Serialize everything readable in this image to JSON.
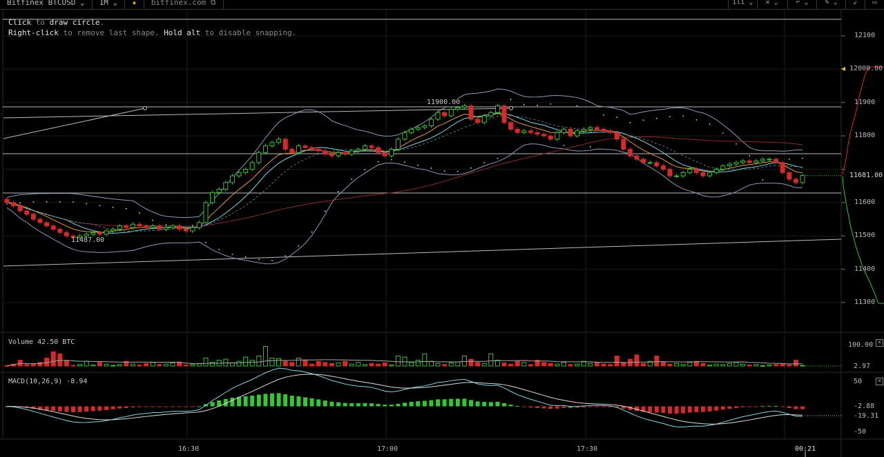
{
  "topbar": {
    "symbol": "Bitfinex BTCUSD",
    "timeframe": "1M",
    "star": "★",
    "site": "bitfinex.com",
    "chevron": "⌄"
  },
  "hint": {
    "l1a": "Click",
    "l1b": " to ",
    "l1c": "draw circle",
    "l1d": ".",
    "l2a": "Right-click",
    "l2b": " to remove last shape. ",
    "l2c": "Hold alt",
    "l2d": " to disable snapping."
  },
  "annotations": {
    "high": "11900.00",
    "low": "11487.00"
  },
  "price_axis": {
    "ticks": [
      "12100",
      "12000.00",
      "11900",
      "11800",
      "11681.00",
      "11600",
      "11500",
      "11400",
      "11300"
    ]
  },
  "volume": {
    "title": "Volume 42.50 BTC",
    "ticks": [
      "100.00",
      "2.97"
    ]
  },
  "macd": {
    "title": "MACD(10,26,9) -8.94",
    "ticks": [
      "50",
      "-2.88",
      "-19.31",
      "-50"
    ]
  },
  "time_axis": {
    "ticks": [
      "16:30",
      "17:00",
      "17:30",
      "00:21"
    ]
  },
  "colors": {
    "up": "#35c535",
    "down": "#d42a2a",
    "bb": "#8a9ab8",
    "ema": "#e89b3c",
    "ma": "#7fd8e0",
    "ma2": "#8b2b2b"
  },
  "chart_data": {
    "type": "candlestick",
    "symbol": "BTCUSD",
    "interval": "1m",
    "ylim": [
      11270,
      12130
    ],
    "open_first": 11610,
    "closes": [
      11600,
      11590,
      11575,
      11565,
      11550,
      11540,
      11530,
      11520,
      11510,
      11500,
      11495,
      11500,
      11505,
      11510,
      11505,
      11515,
      11520,
      11530,
      11525,
      11535,
      11530,
      11525,
      11530,
      11520,
      11525,
      11530,
      11520,
      11515,
      11525,
      11540,
      11600,
      11630,
      11640,
      11660,
      11680,
      11690,
      11700,
      11720,
      11750,
      11770,
      11780,
      11790,
      11760,
      11750,
      11770,
      11765,
      11760,
      11755,
      11745,
      11740,
      11750,
      11745,
      11755,
      11760,
      11770,
      11765,
      11750,
      11740,
      11760,
      11790,
      11810,
      11820,
      11825,
      11830,
      11850,
      11870,
      11860,
      11880,
      11885,
      11890,
      11850,
      11840,
      11860,
      11870,
      11890,
      11840,
      11820,
      11810,
      11815,
      11810,
      11805,
      11800,
      11790,
      11810,
      11820,
      11800,
      11815,
      11820,
      11825,
      11820,
      11815,
      11810,
      11790,
      11760,
      11740,
      11730,
      11720,
      11720,
      11710,
      11700,
      11680,
      11680,
      11690,
      11700,
      11690,
      11680,
      11690,
      11700,
      11710,
      11715,
      11720,
      11725,
      11720,
      11725,
      11730,
      11730,
      11720,
      11690,
      11670,
      11660,
      11681
    ],
    "volumes": [
      5,
      12,
      30,
      10,
      12,
      20,
      40,
      70,
      60,
      30,
      6,
      10,
      25,
      8,
      20,
      12,
      6,
      10,
      25,
      12,
      8,
      15,
      20,
      10,
      12,
      18,
      22,
      8,
      10,
      15,
      40,
      20,
      30,
      35,
      18,
      25,
      45,
      30,
      50,
      95,
      40,
      38,
      25,
      20,
      40,
      30,
      12,
      25,
      20,
      15,
      18,
      25,
      12,
      20,
      10,
      15,
      12,
      18,
      8,
      50,
      45,
      20,
      30,
      60,
      25,
      15,
      10,
      18,
      22,
      50,
      35,
      20,
      15,
      60,
      30,
      18,
      12,
      25,
      20,
      10,
      30,
      20,
      15,
      12,
      20,
      10,
      12,
      25,
      15,
      20,
      12,
      10,
      50,
      20,
      35,
      55,
      15,
      25,
      50,
      20,
      12,
      15,
      10,
      20,
      25,
      15,
      8,
      12,
      10,
      15,
      20,
      12,
      8,
      10,
      5,
      8,
      10,
      12,
      8,
      30,
      6
    ]
  }
}
